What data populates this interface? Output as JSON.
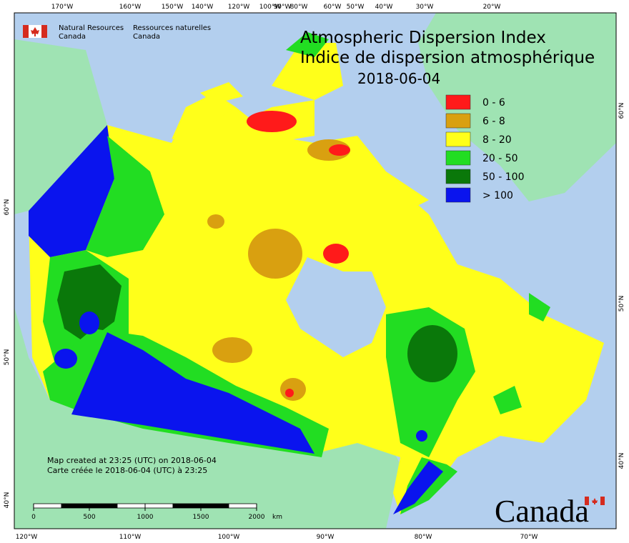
{
  "header": {
    "org_en": [
      "Natural Resources",
      "Canada"
    ],
    "org_fr": [
      "Ressources naturelles",
      "Canada"
    ],
    "title_en": "Atmospheric Dispersion Index",
    "title_fr": "Indice de dispersion atmosphérique",
    "date": "2018-06-04"
  },
  "legend": [
    {
      "label": "0 - 6",
      "color": "#ff1a1a"
    },
    {
      "label": "6 - 8",
      "color": "#d9a010"
    },
    {
      "label": "8 - 20",
      "color": "#ffff1a"
    },
    {
      "label": "20 - 50",
      "color": "#22dd22"
    },
    {
      "label": "50 - 100",
      "color": "#0a780a"
    },
    {
      "label": "> 100",
      "color": "#0a14ee"
    }
  ],
  "graticule": {
    "top": [
      "170°W",
      "160°W",
      "150°W",
      "140°W",
      "120°W",
      "100°W",
      "90°W",
      "80°W",
      "60°W",
      "50°W",
      "40°W",
      "30°W",
      "20°W"
    ],
    "bottom": [
      "120°W",
      "110°W",
      "100°W",
      "90°W",
      "80°W",
      "70°W"
    ],
    "left": [
      "60°N",
      "50°N",
      "40°N"
    ],
    "right": [
      "60°N",
      "50°N",
      "40°N"
    ]
  },
  "credits": [
    "Map created at 23:25 (UTC) on 2018-06-04",
    "Carte créée le 2018-06-04 (UTC) à 23:25"
  ],
  "scale_bar": {
    "labels": [
      "0",
      "500",
      "1000",
      "1500",
      "2000"
    ],
    "unit": "km"
  },
  "wordmark": "Canada"
}
